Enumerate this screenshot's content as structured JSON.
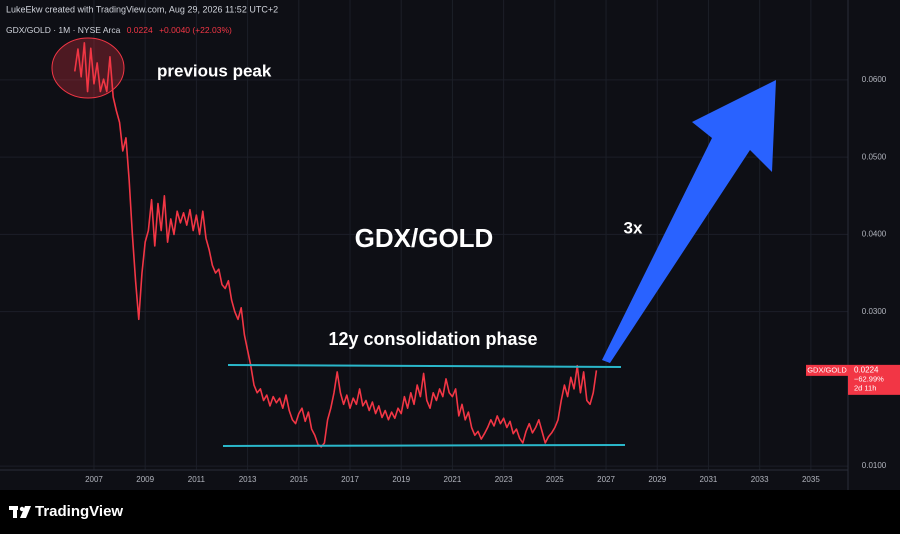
{
  "chart_data": {
    "type": "line",
    "header": "LukeEkw created with TradingView.com, Aug 29, 2026 11:52 UTC+2",
    "legend_label": "GDX/GOLD · 1M · NYSE Arca",
    "last_value": 0.0224,
    "change": "+0.0040 (+22.03%)",
    "change_pct": "−62.99%",
    "countdown": "2d 11h",
    "annotations": {
      "peak": "previous peak",
      "title": "GDX/GOLD",
      "target": "3x",
      "phase": "12y consolidation phase"
    },
    "brand": "TradingView",
    "xlim": [
      2003.33,
      2036.45
    ],
    "xticks": [
      2007,
      2009,
      2011,
      2013,
      2015,
      2017,
      2019,
      2021,
      2023,
      2025,
      2027,
      2029,
      2031,
      2033,
      2035
    ],
    "ylim": [
      0.0095,
      0.0675
    ],
    "yticks": [
      {
        "value": 0.01,
        "label": "0.0100"
      },
      {
        "value": 0.03,
        "label": "0.0300"
      },
      {
        "value": 0.04,
        "label": "0.0400"
      },
      {
        "value": 0.05,
        "label": "0.0500"
      },
      {
        "value": 0.06,
        "label": "0.0600"
      }
    ],
    "grid": true,
    "x": [
      2006.25,
      2006.375,
      2006.5,
      2006.625,
      2006.75,
      2006.875,
      2007,
      2007.125,
      2007.25,
      2007.375,
      2007.5,
      2007.625,
      2007.75,
      2007.875,
      2008,
      2008.125,
      2008.25,
      2008.375,
      2008.5,
      2008.625,
      2008.75,
      2008.875,
      2009,
      2009.125,
      2009.25,
      2009.375,
      2009.5,
      2009.625,
      2009.75,
      2009.875,
      2010,
      2010.125,
      2010.25,
      2010.375,
      2010.5,
      2010.625,
      2010.75,
      2010.875,
      2011,
      2011.125,
      2011.25,
      2011.375,
      2011.5,
      2011.625,
      2011.75,
      2011.875,
      2012,
      2012.125,
      2012.25,
      2012.375,
      2012.5,
      2012.625,
      2012.75,
      2012.875,
      2013,
      2013.125,
      2013.25,
      2013.375,
      2013.5,
      2013.625,
      2013.75,
      2013.875,
      2014,
      2014.125,
      2014.25,
      2014.375,
      2014.5,
      2014.625,
      2014.75,
      2014.875,
      2015,
      2015.125,
      2015.25,
      2015.375,
      2015.5,
      2015.625,
      2015.75,
      2015.875,
      2016,
      2016.125,
      2016.25,
      2016.375,
      2016.5,
      2016.625,
      2016.75,
      2016.875,
      2017,
      2017.125,
      2017.25,
      2017.375,
      2017.5,
      2017.625,
      2017.75,
      2017.875,
      2018,
      2018.125,
      2018.25,
      2018.375,
      2018.5,
      2018.625,
      2018.75,
      2018.875,
      2019,
      2019.125,
      2019.25,
      2019.375,
      2019.5,
      2019.625,
      2019.75,
      2019.875,
      2020,
      2020.125,
      2020.25,
      2020.375,
      2020.5,
      2020.625,
      2020.75,
      2020.875,
      2021,
      2021.125,
      2021.25,
      2021.375,
      2021.5,
      2021.625,
      2021.75,
      2021.875,
      2022,
      2022.125,
      2022.25,
      2022.375,
      2022.5,
      2022.625,
      2022.75,
      2022.875,
      2023,
      2023.125,
      2023.25,
      2023.375,
      2023.5,
      2023.625,
      2023.75,
      2023.875,
      2024,
      2024.125,
      2024.25,
      2024.375,
      2024.5,
      2024.625,
      2024.75,
      2024.875,
      2025,
      2025.125,
      2025.25,
      2025.375,
      2025.5,
      2025.625,
      2025.75,
      2025.875,
      2026,
      2026.125,
      2026.25,
      2026.375,
      2026.5,
      2026.625
    ],
    "series": [
      {
        "name": "GDX/GOLD",
        "color": "#f23645",
        "values": [
          0.0611,
          0.064,
          0.0604,
          0.0648,
          0.0585,
          0.0641,
          0.0595,
          0.0622,
          0.0585,
          0.0601,
          0.0585,
          0.063,
          0.0578,
          0.056,
          0.0545,
          0.0508,
          0.0525,
          0.047,
          0.04,
          0.034,
          0.029,
          0.035,
          0.039,
          0.0405,
          0.0445,
          0.0385,
          0.044,
          0.0405,
          0.045,
          0.039,
          0.042,
          0.04,
          0.043,
          0.0415,
          0.0428,
          0.0412,
          0.0432,
          0.0405,
          0.0425,
          0.04,
          0.043,
          0.0395,
          0.038,
          0.036,
          0.035,
          0.0355,
          0.0335,
          0.033,
          0.034,
          0.0315,
          0.03,
          0.029,
          0.0305,
          0.027,
          0.025,
          0.023,
          0.0205,
          0.0195,
          0.02,
          0.0185,
          0.0192,
          0.0178,
          0.019,
          0.0182,
          0.0188,
          0.0175,
          0.0192,
          0.0172,
          0.016,
          0.0155,
          0.0168,
          0.0175,
          0.0158,
          0.017,
          0.0148,
          0.014,
          0.0128,
          0.0125,
          0.013,
          0.016,
          0.0175,
          0.0195,
          0.0222,
          0.0195,
          0.018,
          0.0192,
          0.0175,
          0.0188,
          0.018,
          0.02,
          0.0178,
          0.0185,
          0.0172,
          0.0183,
          0.0168,
          0.0178,
          0.0163,
          0.0172,
          0.016,
          0.017,
          0.0162,
          0.0175,
          0.0168,
          0.019,
          0.0175,
          0.0195,
          0.018,
          0.0205,
          0.019,
          0.022,
          0.0185,
          0.0175,
          0.0195,
          0.0185,
          0.02,
          0.019,
          0.0213,
          0.0195,
          0.019,
          0.02,
          0.0165,
          0.018,
          0.016,
          0.017,
          0.015,
          0.014,
          0.0145,
          0.0135,
          0.0142,
          0.015,
          0.016,
          0.0152,
          0.0165,
          0.0155,
          0.0162,
          0.015,
          0.0158,
          0.0142,
          0.0148,
          0.0136,
          0.013,
          0.0145,
          0.0155,
          0.0143,
          0.015,
          0.016,
          0.0145,
          0.013,
          0.0138,
          0.0143,
          0.015,
          0.016,
          0.0185,
          0.0205,
          0.019,
          0.0215,
          0.02,
          0.023,
          0.0195,
          0.0222,
          0.0185,
          0.018,
          0.0195,
          0.0224
        ]
      }
    ]
  }
}
